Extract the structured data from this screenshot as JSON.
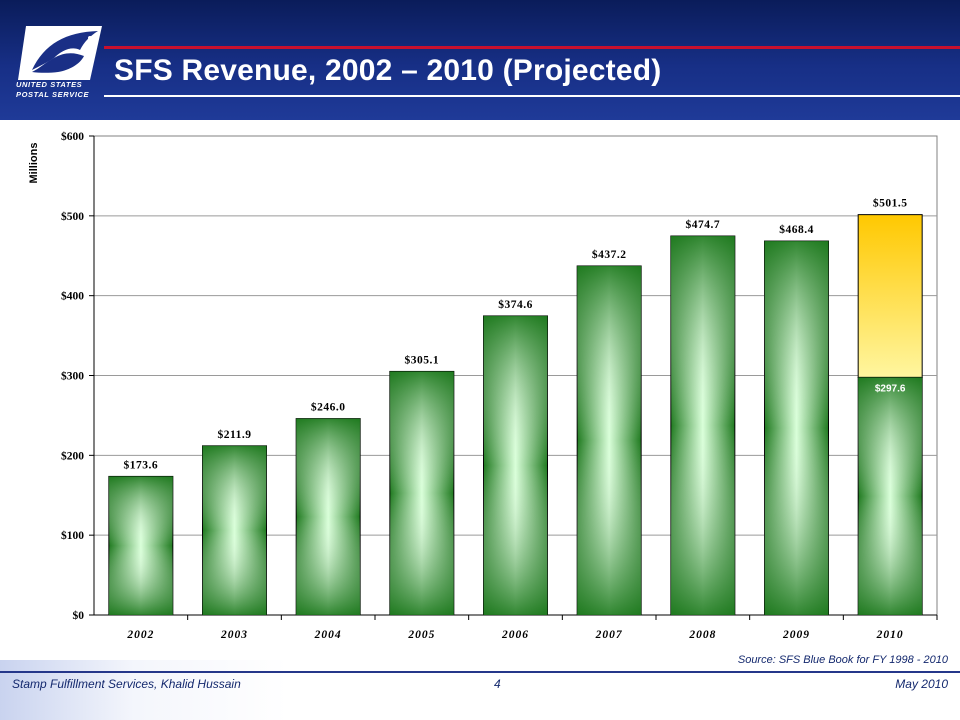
{
  "slide": {
    "title": "SFS Revenue, 2002 – 2010 (Projected)",
    "logo_line1": "UNITED STATES",
    "logo_line2": "POSTAL SERVICE",
    "source": "Source:  SFS Blue Book for FY 1998 - 2010",
    "footer_left": "Stamp Fulfillment Services, Khalid Hussain",
    "footer_center": "4",
    "footer_right": "May 2010"
  },
  "colors": {
    "header": "#172f86",
    "accent_red": "#c8102e",
    "bar_green_dark": "#1f7a1f",
    "bar_green_light": "#d9ffd9",
    "bar_yellow": "#ffc800",
    "bar_yellow_light": "#fff6a0"
  },
  "chart_data": {
    "type": "bar",
    "ylabel": "Millions",
    "ylim": [
      0,
      600
    ],
    "yticks": [
      0,
      100,
      200,
      300,
      400,
      500,
      600
    ],
    "ytick_labels": [
      "$0",
      "$100",
      "$200",
      "$300",
      "$400",
      "$500",
      "$600"
    ],
    "grid": true,
    "categories": [
      "2002",
      "2003",
      "2004",
      "2005",
      "2006",
      "2007",
      "2008",
      "2009",
      "2010"
    ],
    "values": [
      173.6,
      211.9,
      246.0,
      305.1,
      374.6,
      437.2,
      474.7,
      468.4,
      501.5
    ],
    "value_labels": [
      "$173.6",
      "$211.9",
      "$246.0",
      "$305.1",
      "$374.6",
      "$437.2",
      "$474.7",
      "$468.4",
      "$501.5"
    ],
    "stacked_2010": {
      "base_value": 297.6,
      "base_label": "$297.6",
      "total_value": 501.5,
      "total_label": "$501.5"
    }
  }
}
